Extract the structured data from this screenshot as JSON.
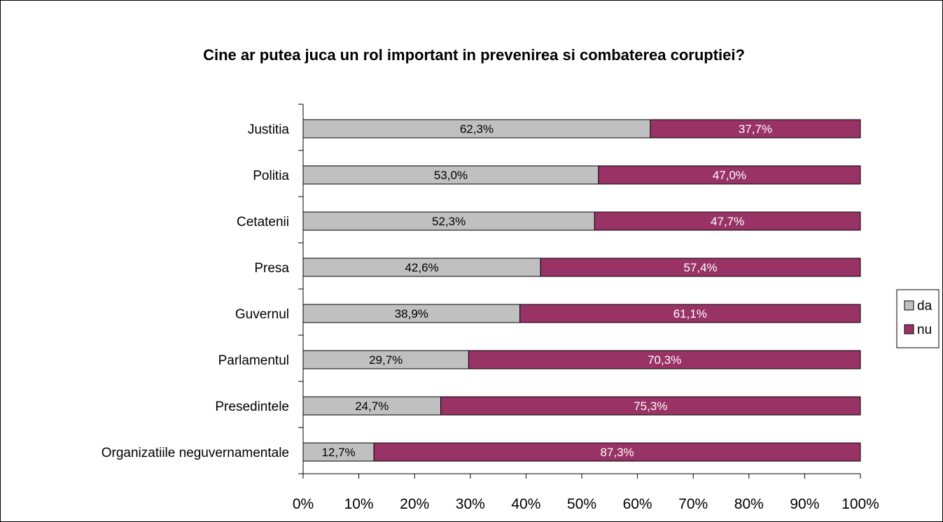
{
  "chart_data": {
    "type": "bar",
    "orientation": "horizontal",
    "stacked": "percent",
    "title": "Cine ar putea juca un rol important in prevenirea si combaterea coruptiei?",
    "categories": [
      "Justitia",
      "Politia",
      "Cetatenii",
      "Presa",
      "Guvernul",
      "Parlamentul",
      "Presedintele",
      "Organizatiile neguvernamentale"
    ],
    "series": [
      {
        "name": "da",
        "color": "#C0C0C0",
        "label_color": "#000000",
        "values": [
          62.3,
          53.0,
          52.3,
          42.6,
          38.9,
          29.7,
          24.7,
          12.7
        ],
        "labels": [
          "62,3%",
          "53,0%",
          "52,3%",
          "42,6%",
          "38,9%",
          "29,7%",
          "24,7%",
          "12,7%"
        ]
      },
      {
        "name": "nu",
        "color": "#993366",
        "label_color": "#FFFFFF",
        "values": [
          37.7,
          47.0,
          47.7,
          57.4,
          61.1,
          70.3,
          75.3,
          87.3
        ],
        "labels": [
          "37,7%",
          "47,0%",
          "47,7%",
          "57,4%",
          "61,1%",
          "70,3%",
          "75,3%",
          "87,3%"
        ]
      }
    ],
    "xlim": [
      0,
      100
    ],
    "xticks": [
      0,
      10,
      20,
      30,
      40,
      50,
      60,
      70,
      80,
      90,
      100
    ],
    "xtick_labels": [
      "0%",
      "10%",
      "20%",
      "30%",
      "40%",
      "50%",
      "60%",
      "70%",
      "80%",
      "90%",
      "100%"
    ],
    "grid": false,
    "legend": "right"
  }
}
